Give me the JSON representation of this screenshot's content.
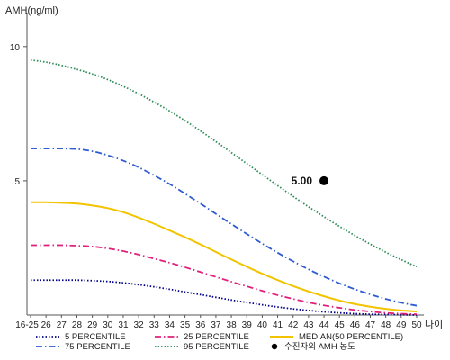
{
  "chart_data": {
    "type": "line",
    "ylabel": "AMH(ng/ml)",
    "xlabel": "나이",
    "x": [
      "16-25",
      "26",
      "27",
      "28",
      "29",
      "30",
      "31",
      "32",
      "33",
      "34",
      "35",
      "36",
      "37",
      "38",
      "39",
      "40",
      "41",
      "42",
      "43",
      "44",
      "45",
      "46",
      "47",
      "48",
      "49",
      "50"
    ],
    "yticks": [
      "10",
      "5"
    ],
    "ylim": [
      0,
      11
    ],
    "grid": false,
    "series": [
      {
        "name": "5 PERCENTILE",
        "color": "#00008b",
        "style": "dotted",
        "values": [
          1.3,
          1.3,
          1.3,
          1.3,
          1.28,
          1.25,
          1.2,
          1.13,
          1.05,
          0.96,
          0.86,
          0.76,
          0.66,
          0.56,
          0.47,
          0.38,
          0.3,
          0.23,
          0.17,
          0.12,
          0.08,
          0.05,
          0.03,
          0.02,
          0.01,
          0.0
        ]
      },
      {
        "name": "25 PERCENTILE",
        "color": "#e0207a",
        "style": "dash-dot",
        "values": [
          2.6,
          2.6,
          2.6,
          2.58,
          2.55,
          2.48,
          2.38,
          2.25,
          2.1,
          1.95,
          1.78,
          1.6,
          1.42,
          1.24,
          1.07,
          0.9,
          0.74,
          0.6,
          0.47,
          0.36,
          0.27,
          0.19,
          0.13,
          0.08,
          0.05,
          0.03
        ]
      },
      {
        "name": "MEDIAN(50 PERCENTILE)",
        "color": "#f2c400",
        "style": "solid",
        "values": [
          4.2,
          4.2,
          4.18,
          4.15,
          4.08,
          3.98,
          3.83,
          3.63,
          3.4,
          3.15,
          2.9,
          2.63,
          2.35,
          2.07,
          1.8,
          1.54,
          1.3,
          1.08,
          0.88,
          0.7,
          0.54,
          0.41,
          0.31,
          0.23,
          0.17,
          0.13
        ]
      },
      {
        "name": "75 PERCENTILE",
        "color": "#2e5bd0",
        "style": "dash-dot",
        "values": [
          6.2,
          6.2,
          6.2,
          6.18,
          6.1,
          5.95,
          5.75,
          5.5,
          5.2,
          4.88,
          4.52,
          4.15,
          3.77,
          3.39,
          3.02,
          2.66,
          2.32,
          2.0,
          1.7,
          1.43,
          1.18,
          0.96,
          0.77,
          0.6,
          0.46,
          0.35
        ]
      },
      {
        "name": "95 PERCENTILE",
        "color": "#2e8b57",
        "style": "dotted",
        "values": [
          9.5,
          9.42,
          9.3,
          9.15,
          8.98,
          8.77,
          8.52,
          8.24,
          7.93,
          7.6,
          7.24,
          6.86,
          6.46,
          6.05,
          5.64,
          5.23,
          4.82,
          4.42,
          4.03,
          3.66,
          3.3,
          2.96,
          2.64,
          2.34,
          2.06,
          1.8
        ]
      }
    ],
    "patient": {
      "name": "수진자의 AMH 농도",
      "x": "44",
      "y": 5.0,
      "label": "5.00"
    },
    "legend_position": "bottom"
  }
}
